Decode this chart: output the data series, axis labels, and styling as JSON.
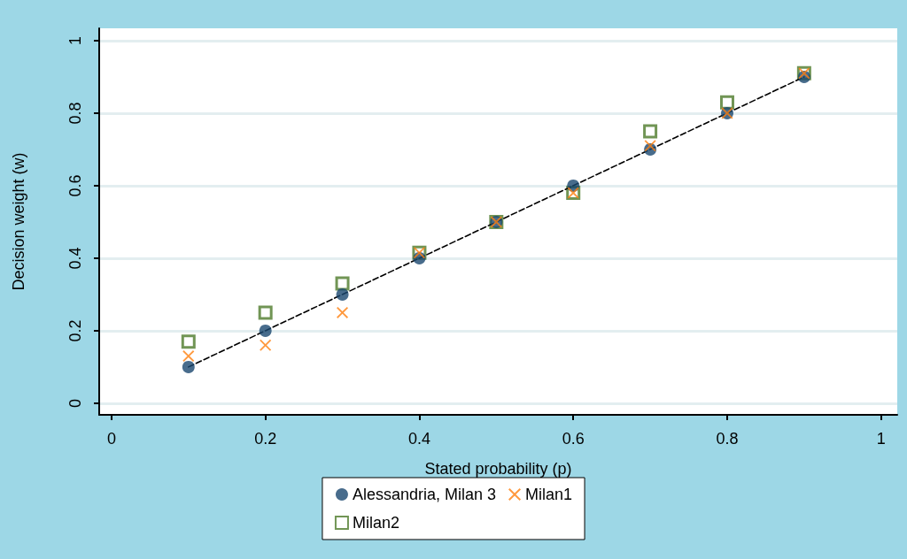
{
  "chart_data": {
    "type": "scatter",
    "xlabel": "Stated probability (p)",
    "ylabel": "Decision weight (w)",
    "x": [
      0.1,
      0.2,
      0.3,
      0.4,
      0.5,
      0.6,
      0.7,
      0.8,
      0.9
    ],
    "series": [
      {
        "name": "Alessandria, Milan 3",
        "color": "#1a476f",
        "marker": "circle",
        "values": [
          0.1,
          0.2,
          0.3,
          0.4,
          0.5,
          0.6,
          0.7,
          0.8,
          0.9
        ]
      },
      {
        "name": "Milan1",
        "color": "#ff7f0e",
        "marker": "cross",
        "values": [
          0.13,
          0.16,
          0.25,
          0.415,
          0.5,
          0.58,
          0.71,
          0.8,
          0.91
        ]
      },
      {
        "name": "Milan2",
        "color": "#4e7a2b",
        "marker": "square",
        "values": [
          0.17,
          0.25,
          0.33,
          0.415,
          0.5,
          0.58,
          0.75,
          0.83,
          0.91
        ]
      },
      {
        "type": "line",
        "color": "#000000",
        "marker": "none",
        "line_style": "dashed",
        "x": [
          0.1,
          0.9
        ],
        "values": [
          0.1,
          0.9
        ]
      }
    ],
    "xlim": [
      -0.016,
      1.021
    ],
    "xticks": [
      0,
      0.2,
      0.4,
      0.6,
      0.8,
      1
    ],
    "ylim": [
      -0.032,
      1.034
    ],
    "yticks": [
      0,
      0.2,
      0.4,
      0.6,
      0.8,
      1
    ],
    "grid": "y",
    "legend": "bottom"
  }
}
